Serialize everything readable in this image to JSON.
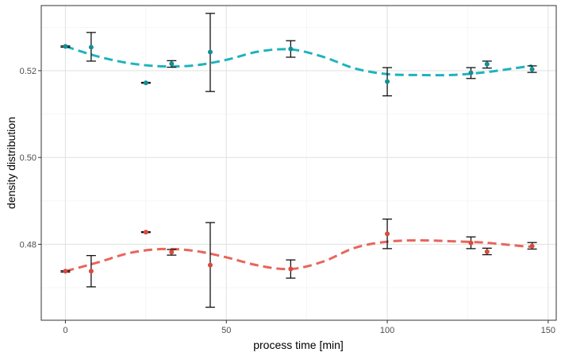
{
  "chart_data": {
    "type": "scatter",
    "xlabel": "process time [min]",
    "ylabel": "density distribution",
    "xlim": [
      -7.5,
      152.5
    ],
    "ylim": [
      0.4625,
      0.535
    ],
    "xticks": [
      {
        "value": 0,
        "label": "0"
      },
      {
        "value": 50,
        "label": "50"
      },
      {
        "value": 100,
        "label": "100"
      },
      {
        "value": 150,
        "label": "150"
      }
    ],
    "yticks": [
      {
        "value": 0.48,
        "label": "0.48"
      },
      {
        "value": 0.5,
        "label": "0.50"
      },
      {
        "value": 0.52,
        "label": "0.52"
      }
    ],
    "y_minor_ticks": [
      0.47,
      0.49,
      0.51,
      0.53
    ],
    "x_minor_ticks": [
      25,
      75,
      125
    ],
    "grid": true,
    "series": [
      {
        "color": "#1fb3bd",
        "point_color": "#138f96",
        "points": [
          {
            "x": 0,
            "y": 0.5256,
            "err_low": 0.5254,
            "err_high": 0.5257
          },
          {
            "x": 8,
            "y": 0.5254,
            "err_low": 0.5222,
            "err_high": 0.5288
          },
          {
            "x": 25,
            "y": 0.5172,
            "err_low": 0.5171,
            "err_high": 0.5173
          },
          {
            "x": 33,
            "y": 0.5216,
            "err_low": 0.5208,
            "err_high": 0.5223
          },
          {
            "x": 45,
            "y": 0.5243,
            "err_low": 0.5152,
            "err_high": 0.5332
          },
          {
            "x": 70,
            "y": 0.525,
            "err_low": 0.5231,
            "err_high": 0.5269
          },
          {
            "x": 100,
            "y": 0.5175,
            "err_low": 0.5142,
            "err_high": 0.5207
          },
          {
            "x": 126,
            "y": 0.5195,
            "err_low": 0.5182,
            "err_high": 0.5207
          },
          {
            "x": 131,
            "y": 0.5215,
            "err_low": 0.5206,
            "err_high": 0.5222
          },
          {
            "x": 145,
            "y": 0.5203,
            "err_low": 0.5196,
            "err_high": 0.5211
          }
        ],
        "fit": {
          "x": [
            0,
            10,
            20,
            30,
            40,
            50,
            60,
            70,
            80,
            90,
            100,
            110,
            120,
            130,
            140,
            145
          ],
          "y": [
            0.5256,
            0.5233,
            0.5217,
            0.521,
            0.5212,
            0.5225,
            0.5244,
            0.5249,
            0.5232,
            0.5205,
            0.5192,
            0.519,
            0.519,
            0.5196,
            0.5206,
            0.5212
          ]
        }
      },
      {
        "color": "#e8655c",
        "point_color": "#d94a3d",
        "points": [
          {
            "x": 0,
            "y": 0.4738,
            "err_low": 0.4736,
            "err_high": 0.4739
          },
          {
            "x": 8,
            "y": 0.4738,
            "err_low": 0.4702,
            "err_high": 0.4774
          },
          {
            "x": 25,
            "y": 0.4828,
            "err_low": 0.4827,
            "err_high": 0.4829
          },
          {
            "x": 33,
            "y": 0.4782,
            "err_low": 0.4775,
            "err_high": 0.4788
          },
          {
            "x": 45,
            "y": 0.4752,
            "err_low": 0.4655,
            "err_high": 0.485
          },
          {
            "x": 70,
            "y": 0.4743,
            "err_low": 0.4722,
            "err_high": 0.4764
          },
          {
            "x": 100,
            "y": 0.4824,
            "err_low": 0.479,
            "err_high": 0.4858
          },
          {
            "x": 126,
            "y": 0.4803,
            "err_low": 0.479,
            "err_high": 0.4817
          },
          {
            "x": 131,
            "y": 0.4783,
            "err_low": 0.4776,
            "err_high": 0.4791
          },
          {
            "x": 145,
            "y": 0.4796,
            "err_low": 0.4789,
            "err_high": 0.4804
          }
        ],
        "fit": {
          "x": [
            0,
            10,
            20,
            30,
            40,
            50,
            60,
            70,
            80,
            90,
            100,
            110,
            120,
            130,
            140,
            145
          ],
          "y": [
            0.4738,
            0.4758,
            0.478,
            0.4789,
            0.4785,
            0.477,
            0.4751,
            0.4743,
            0.476,
            0.4792,
            0.4806,
            0.4809,
            0.4807,
            0.4804,
            0.4797,
            0.4794
          ]
        }
      }
    ]
  }
}
